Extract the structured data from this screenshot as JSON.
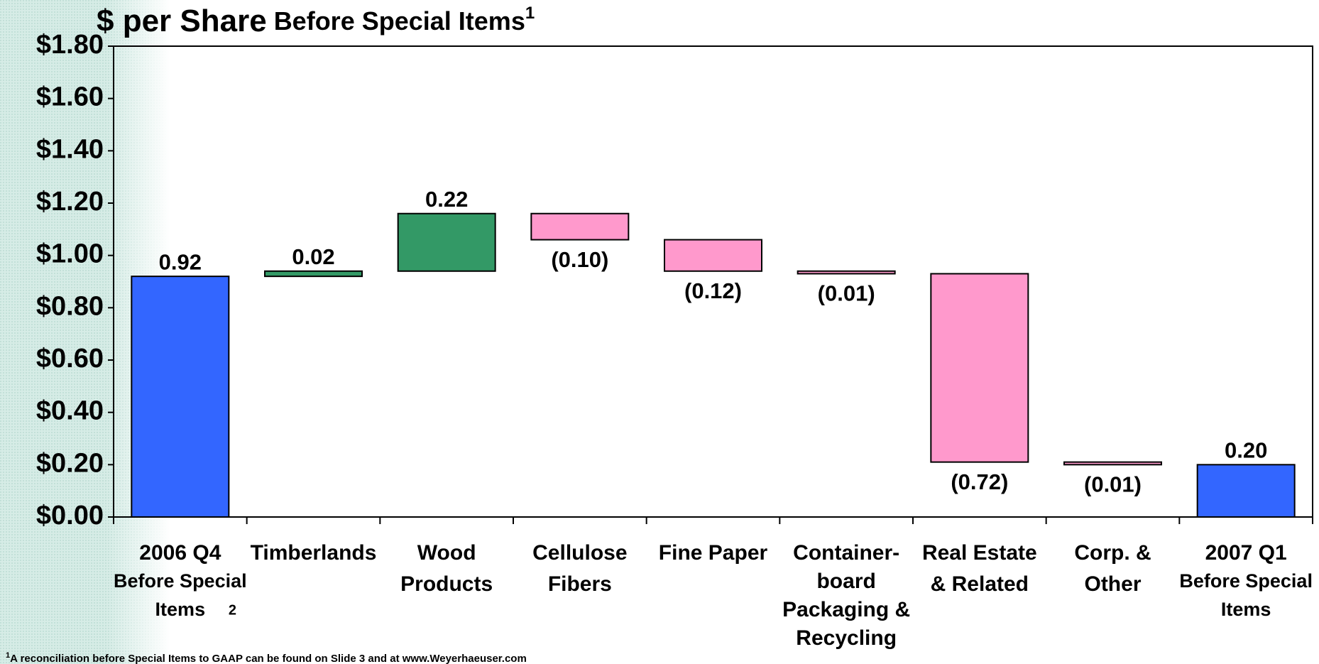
{
  "chart_data": {
    "type": "waterfall",
    "title": "$ per Share",
    "subtitle": "Before Special Items",
    "title_note": "1",
    "footnote_mark": "1",
    "footnote": "A reconciliation before Special Items to GAAP can be found on Slide 3 and at www.Weyerhaeuser.com",
    "categories": [
      [
        "2006 Q4",
        "Before Special",
        "Items"
      ],
      [
        "Timberlands"
      ],
      [
        "Wood",
        "Products"
      ],
      [
        "Cellulose",
        "Fibers"
      ],
      [
        "Fine Paper"
      ],
      [
        "Container-",
        "board",
        "Packaging &",
        "Recycling"
      ],
      [
        "Real Estate",
        "& Related"
      ],
      [
        "Corp. &",
        "Other"
      ],
      [
        "2007 Q1",
        "Before Special",
        "Items"
      ]
    ],
    "category_notes": [
      "2",
      null,
      null,
      null,
      null,
      null,
      null,
      null,
      null
    ],
    "kinds": [
      "total",
      "delta",
      "delta",
      "delta",
      "delta",
      "delta",
      "delta",
      "delta",
      "total"
    ],
    "values": [
      0.92,
      0.02,
      0.22,
      -0.1,
      -0.12,
      -0.01,
      -0.72,
      -0.01,
      0.2
    ],
    "value_labels": [
      "0.92",
      "0.02",
      "0.22",
      "(0.10)",
      "(0.12)",
      "(0.01)",
      "(0.72)",
      "(0.01)",
      "0.20"
    ],
    "colors": {
      "total": "#3366ff",
      "increase": "#339966",
      "decrease": "#ff99cc"
    },
    "ylim": [
      0,
      1.8
    ],
    "yticks": [
      {
        "value": 0,
        "label": "$0.00"
      },
      {
        "value": 0.2,
        "label": "$0.20"
      },
      {
        "value": 0.4,
        "label": "$0.40"
      },
      {
        "value": 0.6,
        "label": "$0.60"
      },
      {
        "value": 0.8,
        "label": "$0.80"
      },
      {
        "value": 1.0,
        "label": "$1.00"
      },
      {
        "value": 1.2,
        "label": "$1.20"
      },
      {
        "value": 1.4,
        "label": "$1.40"
      },
      {
        "value": 1.6,
        "label": "$1.60"
      },
      {
        "value": 1.8,
        "label": "$1.80"
      }
    ],
    "grid": false
  }
}
